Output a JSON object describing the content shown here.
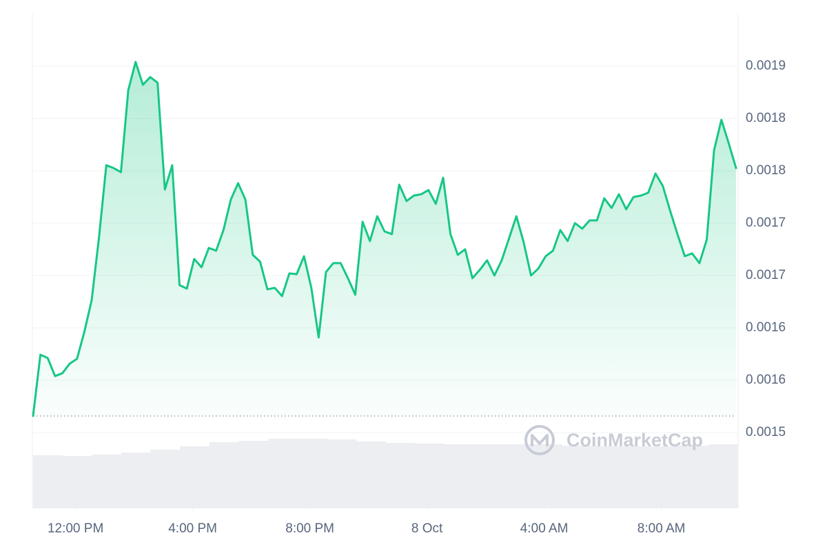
{
  "chart_data": {
    "type": "line",
    "watermark": "CoinMarketCap",
    "color": "#16c784",
    "x": [
      10.55,
      10.8,
      11.05,
      11.3,
      11.55,
      11.8,
      12.05,
      12.3,
      12.55,
      12.8,
      13.05,
      13.3,
      13.55,
      13.8,
      14.05,
      14.3,
      14.55,
      14.8,
      15.05,
      15.3,
      15.55,
      15.8,
      16.05,
      16.3,
      16.55,
      16.8,
      17.05,
      17.3,
      17.55,
      17.8,
      18.05,
      18.3,
      18.55,
      18.8,
      19.05,
      19.3,
      19.55,
      19.8,
      20.05,
      20.3,
      20.55,
      20.8,
      21.05,
      21.3,
      21.55,
      21.8,
      22.05,
      22.3,
      22.55,
      22.8,
      23.05,
      23.3,
      23.55,
      23.8,
      24.05,
      24.3,
      24.55,
      24.8,
      25.05,
      25.3,
      25.55,
      25.8,
      26.05,
      26.3,
      26.55,
      26.8,
      27.05,
      27.3,
      27.55,
      27.8,
      28.05,
      28.3,
      28.55,
      28.8,
      29.05,
      29.3,
      29.55,
      29.8,
      30.05,
      30.3,
      30.55,
      30.8,
      31.05,
      31.3,
      31.55,
      31.8,
      32.05,
      32.3,
      32.55,
      32.8,
      33.05,
      33.3,
      33.55,
      33.8,
      34.05,
      34.3,
      34.55
    ],
    "values": [
      0.0015158,
      0.0015743,
      0.0015711,
      0.0015539,
      0.0015566,
      0.0015658,
      0.0015704,
      0.0015961,
      0.0016263,
      0.0016862,
      0.0017553,
      0.0017526,
      0.0017487,
      0.001827,
      0.001854,
      0.0018322,
      0.0018395,
      0.0018342,
      0.0017322,
      0.0017553,
      0.0016408,
      0.0016375,
      0.0016658,
      0.0016579,
      0.0016763,
      0.0016737,
      0.0016934,
      0.0017224,
      0.0017382,
      0.0017224,
      0.0016697,
      0.0016632,
      0.0016368,
      0.0016382,
      0.0016303,
      0.001652,
      0.0016513,
      0.0016684,
      0.0016382,
      0.0015908,
      0.0016533,
      0.0016618,
      0.0016618,
      0.0016474,
      0.0016316,
      0.0017013,
      0.0016829,
      0.0017066,
      0.0016921,
      0.0016895,
      0.0017368,
      0.0017211,
      0.0017263,
      0.0017276,
      0.0017316,
      0.0017184,
      0.0017434,
      0.0016895,
      0.0016697,
      0.001675,
      0.0016474,
      0.0016553,
      0.0016645,
      0.00165,
      0.0016645,
      0.0016855,
      0.0017066,
      0.0016816,
      0.00165,
      0.0016566,
      0.0016684,
      0.0016737,
      0.0016934,
      0.0016829,
      0.0017,
      0.0016947,
      0.0017026,
      0.0017026,
      0.0017237,
      0.0017145,
      0.0017276,
      0.0017132,
      0.001725,
      0.0017263,
      0.001729,
      0.0017474,
      0.0017355,
      0.0017118,
      0.0016895,
      0.0016684,
      0.0016711,
      0.0016618,
      0.0016842,
      0.0017697,
      0.0017987,
      0.0017763,
      0.0017526
    ],
    "reference_line": 0.0015158,
    "volume": {
      "color": "#eceef2",
      "values": [
        77,
        76,
        78,
        81,
        85,
        90,
        96,
        98,
        101,
        101,
        100,
        97,
        95,
        94,
        93,
        93,
        93,
        93,
        91,
        90,
        90,
        90,
        91,
        93
      ]
    },
    "xlim": [
      10.55,
      34.62
    ],
    "xticks": [
      {
        "value": 12,
        "label": "12:00 PM"
      },
      {
        "value": 16,
        "label": "4:00 PM"
      },
      {
        "value": 20,
        "label": "8:00 PM"
      },
      {
        "value": 24,
        "label": "8 Oct"
      },
      {
        "value": 28,
        "label": "4:00 AM"
      },
      {
        "value": 32,
        "label": "8:00 AM"
      }
    ],
    "ylim": [
      0.0014276,
      0.0019
    ],
    "yticks": [
      0.0015,
      {
        "value": 0.00155,
        "label": "0.0016"
      },
      0.0016,
      {
        "value": 0.00165,
        "label": "0.0017"
      },
      0.0017,
      {
        "value": 0.00175,
        "label": "0.0018"
      },
      0.0018,
      {
        "value": 0.00185,
        "label": "0.0019"
      }
    ],
    "grid": true
  }
}
